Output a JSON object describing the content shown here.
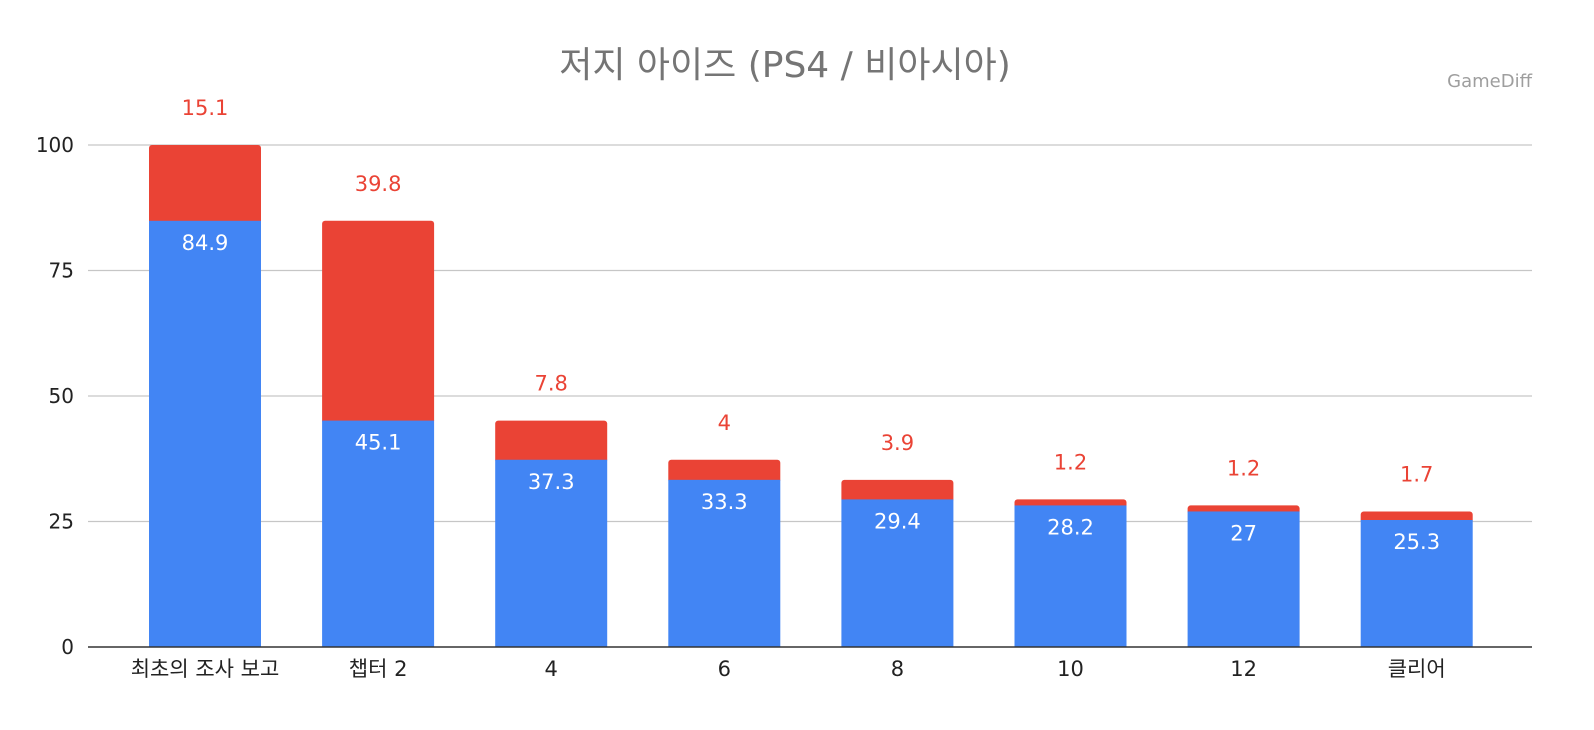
{
  "chart_data": {
    "type": "bar",
    "stacked": true,
    "title": "저지 아이즈 (PS4 / 비아시아)",
    "watermark": "GameDiff",
    "categories": [
      "최초의 조사 보고",
      "챕터 2",
      "4",
      "6",
      "8",
      "10",
      "12",
      "클리어"
    ],
    "series": [
      {
        "name": "base",
        "color": "#4285f4",
        "values": [
          84.9,
          45.1,
          37.3,
          33.3,
          29.4,
          28.2,
          27,
          25.3
        ]
      },
      {
        "name": "drop",
        "color": "#ea4335",
        "values": [
          15.1,
          39.8,
          7.8,
          4,
          3.9,
          1.2,
          1.2,
          1.7
        ]
      }
    ],
    "series_labels": [
      [
        "84.9",
        "45.1",
        "37.3",
        "33.3",
        "29.4",
        "28.2",
        "27",
        "25.3"
      ],
      [
        "15.1",
        "39.8",
        "7.8",
        "4",
        "3.9",
        "1.2",
        "1.2",
        "1.7"
      ]
    ],
    "y_ticks": [
      0,
      25,
      50,
      75,
      100
    ],
    "y_tick_labels": [
      "0",
      "25",
      "50",
      "75",
      "100"
    ],
    "ylim": [
      0,
      100
    ],
    "grid": true,
    "xlabel": "",
    "ylabel": "",
    "legend": "none"
  }
}
